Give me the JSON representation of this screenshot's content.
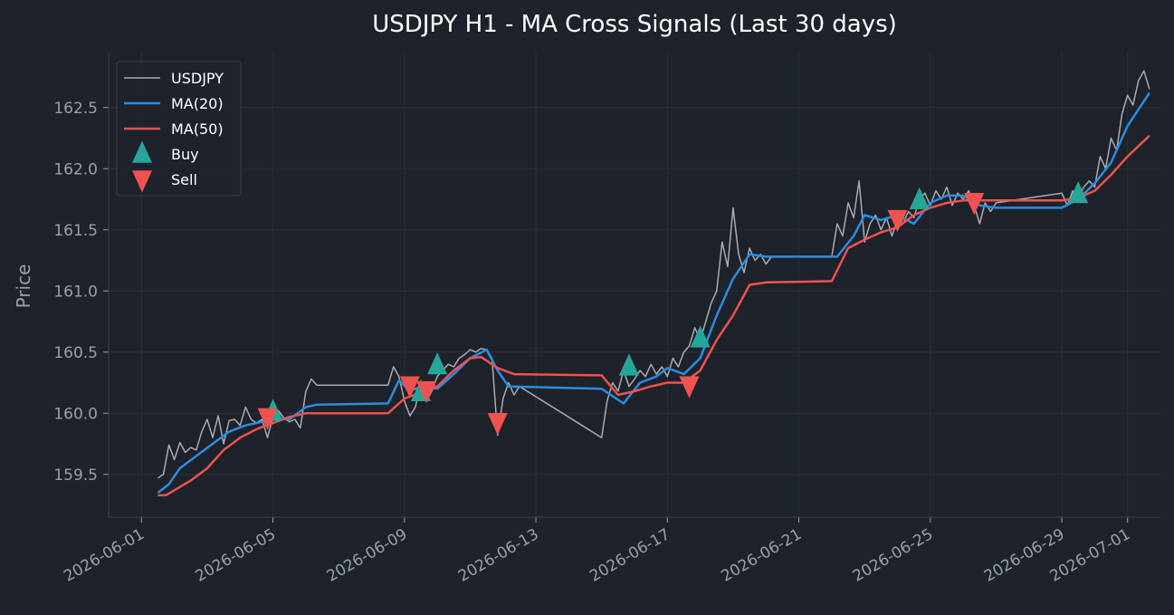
{
  "chart_data": {
    "type": "line",
    "title": "USDJPY H1 - MA Cross Signals (Last 30 days)",
    "xlabel": "",
    "ylabel": "Price",
    "xlim": [
      "2026-05-31T00:00",
      "2026-07-02T00:00"
    ],
    "ylim": [
      159.15,
      162.95
    ],
    "x_ticks": [
      "2026-06-01",
      "2026-06-05",
      "2026-06-09",
      "2026-06-13",
      "2026-06-17",
      "2026-06-21",
      "2026-06-25",
      "2026-06-29",
      "2026-07-01"
    ],
    "y_ticks": [
      159.5,
      160.0,
      160.5,
      161.0,
      161.5,
      162.0,
      162.5
    ],
    "grid": true,
    "legend_position": "top-left",
    "colors": {
      "background": "#1e222b",
      "grid": "#2a2f3a",
      "axis_text": "#9aa0ab",
      "title": "#ffffff",
      "price": "#a8adb5",
      "ma20": "#2b8de0",
      "ma50": "#ee5250",
      "buy": "#26a69a",
      "sell": "#ef5350"
    },
    "series": [
      {
        "name": "USDJPY",
        "kind": "line",
        "points": [
          [
            "2026-06-01T12:00",
            159.47
          ],
          [
            "2026-06-01T16:00",
            159.5
          ],
          [
            "2026-06-01T20:00",
            159.74
          ],
          [
            "2026-06-02T00:00",
            159.62
          ],
          [
            "2026-06-02T04:00",
            159.76
          ],
          [
            "2026-06-02T08:00",
            159.68
          ],
          [
            "2026-06-02T12:00",
            159.72
          ],
          [
            "2026-06-02T16:00",
            159.7
          ],
          [
            "2026-06-02T20:00",
            159.85
          ],
          [
            "2026-06-03T00:00",
            159.95
          ],
          [
            "2026-06-03T04:00",
            159.8
          ],
          [
            "2026-06-03T08:00",
            159.98
          ],
          [
            "2026-06-03T12:00",
            159.75
          ],
          [
            "2026-06-03T16:00",
            159.94
          ],
          [
            "2026-06-03T20:00",
            159.95
          ],
          [
            "2026-06-04T00:00",
            159.9
          ],
          [
            "2026-06-04T04:00",
            160.05
          ],
          [
            "2026-06-04T08:00",
            159.95
          ],
          [
            "2026-06-04T12:00",
            159.92
          ],
          [
            "2026-06-04T16:00",
            159.95
          ],
          [
            "2026-06-04T20:00",
            159.8
          ],
          [
            "2026-06-05T00:00",
            159.97
          ],
          [
            "2026-06-05T04:00",
            160.02
          ],
          [
            "2026-06-05T08:00",
            159.96
          ],
          [
            "2026-06-05T12:00",
            159.93
          ],
          [
            "2026-06-05T16:00",
            159.95
          ],
          [
            "2026-06-05T20:00",
            159.88
          ],
          [
            "2026-06-06T00:00",
            160.18
          ],
          [
            "2026-06-06T04:00",
            160.28
          ],
          [
            "2026-06-06T08:00",
            160.23
          ],
          [
            "2026-06-08T12:00",
            160.23
          ],
          [
            "2026-06-08T16:00",
            160.38
          ],
          [
            "2026-06-08T20:00",
            160.3
          ],
          [
            "2026-06-09T00:00",
            160.1
          ],
          [
            "2026-06-09T04:00",
            159.98
          ],
          [
            "2026-06-09T08:00",
            160.05
          ],
          [
            "2026-06-09T12:00",
            160.25
          ],
          [
            "2026-06-09T16:00",
            160.1
          ],
          [
            "2026-06-09T20:00",
            160.18
          ],
          [
            "2026-06-10T00:00",
            160.3
          ],
          [
            "2026-06-10T04:00",
            160.35
          ],
          [
            "2026-06-10T08:00",
            160.4
          ],
          [
            "2026-06-10T12:00",
            160.38
          ],
          [
            "2026-06-10T16:00",
            160.45
          ],
          [
            "2026-06-10T20:00",
            160.48
          ],
          [
            "2026-06-11T00:00",
            160.52
          ],
          [
            "2026-06-11T04:00",
            160.5
          ],
          [
            "2026-06-11T08:00",
            160.53
          ],
          [
            "2026-06-11T12:00",
            160.52
          ],
          [
            "2026-06-11T16:00",
            160.45
          ],
          [
            "2026-06-11T20:00",
            159.82
          ],
          [
            "2026-06-12T00:00",
            160.12
          ],
          [
            "2026-06-12T04:00",
            160.25
          ],
          [
            "2026-06-12T08:00",
            160.15
          ],
          [
            "2026-06-12T12:00",
            160.22
          ],
          [
            "2026-06-15T00:00",
            159.8
          ],
          [
            "2026-06-15T04:00",
            160.1
          ],
          [
            "2026-06-15T08:00",
            160.25
          ],
          [
            "2026-06-15T12:00",
            160.18
          ],
          [
            "2026-06-15T16:00",
            160.35
          ],
          [
            "2026-06-15T20:00",
            160.22
          ],
          [
            "2026-06-16T00:00",
            160.28
          ],
          [
            "2026-06-16T04:00",
            160.35
          ],
          [
            "2026-06-16T08:00",
            160.3
          ],
          [
            "2026-06-16T12:00",
            160.4
          ],
          [
            "2026-06-16T16:00",
            160.32
          ],
          [
            "2026-06-16T20:00",
            160.38
          ],
          [
            "2026-06-17T00:00",
            160.3
          ],
          [
            "2026-06-17T04:00",
            160.45
          ],
          [
            "2026-06-17T08:00",
            160.38
          ],
          [
            "2026-06-17T12:00",
            160.5
          ],
          [
            "2026-06-17T16:00",
            160.55
          ],
          [
            "2026-06-17T20:00",
            160.7
          ],
          [
            "2026-06-18T00:00",
            160.6
          ],
          [
            "2026-06-18T04:00",
            160.75
          ],
          [
            "2026-06-18T08:00",
            160.9
          ],
          [
            "2026-06-18T12:00",
            161.0
          ],
          [
            "2026-06-18T16:00",
            161.4
          ],
          [
            "2026-06-18T20:00",
            161.2
          ],
          [
            "2026-06-19T00:00",
            161.68
          ],
          [
            "2026-06-19T04:00",
            161.3
          ],
          [
            "2026-06-19T08:00",
            161.15
          ],
          [
            "2026-06-19T12:00",
            161.35
          ],
          [
            "2026-06-19T16:00",
            161.25
          ],
          [
            "2026-06-19T20:00",
            161.3
          ],
          [
            "2026-06-20T00:00",
            161.22
          ],
          [
            "2026-06-20T04:00",
            161.28
          ],
          [
            "2026-06-22T00:00",
            161.28
          ],
          [
            "2026-06-22T04:00",
            161.55
          ],
          [
            "2026-06-22T08:00",
            161.45
          ],
          [
            "2026-06-22T12:00",
            161.72
          ],
          [
            "2026-06-22T16:00",
            161.6
          ],
          [
            "2026-06-22T20:00",
            161.9
          ],
          [
            "2026-06-23T00:00",
            161.4
          ],
          [
            "2026-06-23T04:00",
            161.55
          ],
          [
            "2026-06-23T08:00",
            161.62
          ],
          [
            "2026-06-23T12:00",
            161.5
          ],
          [
            "2026-06-23T16:00",
            161.6
          ],
          [
            "2026-06-23T20:00",
            161.45
          ],
          [
            "2026-06-24T00:00",
            161.58
          ],
          [
            "2026-06-24T04:00",
            161.55
          ],
          [
            "2026-06-24T08:00",
            161.65
          ],
          [
            "2026-06-24T12:00",
            161.6
          ],
          [
            "2026-06-24T16:00",
            161.75
          ],
          [
            "2026-06-24T20:00",
            161.8
          ],
          [
            "2026-06-25T00:00",
            161.7
          ],
          [
            "2026-06-25T04:00",
            161.82
          ],
          [
            "2026-06-25T08:00",
            161.75
          ],
          [
            "2026-06-25T12:00",
            161.85
          ],
          [
            "2026-06-25T16:00",
            161.7
          ],
          [
            "2026-06-25T20:00",
            161.8
          ],
          [
            "2026-06-26T00:00",
            161.75
          ],
          [
            "2026-06-26T04:00",
            161.82
          ],
          [
            "2026-06-26T08:00",
            161.7
          ],
          [
            "2026-06-26T12:00",
            161.55
          ],
          [
            "2026-06-26T16:00",
            161.72
          ],
          [
            "2026-06-26T20:00",
            161.65
          ],
          [
            "2026-06-27T00:00",
            161.72
          ],
          [
            "2026-06-29T00:00",
            161.8
          ],
          [
            "2026-06-29T04:00",
            161.7
          ],
          [
            "2026-06-29T08:00",
            161.82
          ],
          [
            "2026-06-29T12:00",
            161.75
          ],
          [
            "2026-06-29T16:00",
            161.85
          ],
          [
            "2026-06-29T20:00",
            161.9
          ],
          [
            "2026-06-30T00:00",
            161.85
          ],
          [
            "2026-06-30T04:00",
            162.1
          ],
          [
            "2026-06-30T08:00",
            162.0
          ],
          [
            "2026-06-30T12:00",
            162.25
          ],
          [
            "2026-06-30T16:00",
            162.15
          ],
          [
            "2026-06-30T20:00",
            162.45
          ],
          [
            "2026-07-01T00:00",
            162.6
          ],
          [
            "2026-07-01T04:00",
            162.52
          ],
          [
            "2026-07-01T08:00",
            162.72
          ],
          [
            "2026-07-01T12:00",
            162.8
          ],
          [
            "2026-07-01T16:00",
            162.65
          ]
        ]
      },
      {
        "name": "MA(20)",
        "kind": "line",
        "points": [
          [
            "2026-06-01T12:00",
            159.35
          ],
          [
            "2026-06-01T20:00",
            159.42
          ],
          [
            "2026-06-02T04:00",
            159.55
          ],
          [
            "2026-06-02T16:00",
            159.65
          ],
          [
            "2026-06-03T04:00",
            159.75
          ],
          [
            "2026-06-03T16:00",
            159.85
          ],
          [
            "2026-06-04T04:00",
            159.9
          ],
          [
            "2026-06-04T16:00",
            159.93
          ],
          [
            "2026-06-05T00:00",
            159.96
          ],
          [
            "2026-06-05T12:00",
            159.95
          ],
          [
            "2026-06-06T00:00",
            160.05
          ],
          [
            "2026-06-06T08:00",
            160.07
          ],
          [
            "2026-06-08T12:00",
            160.08
          ],
          [
            "2026-06-08T20:00",
            160.27
          ],
          [
            "2026-06-09T04:00",
            160.18
          ],
          [
            "2026-06-09T12:00",
            160.22
          ],
          [
            "2026-06-10T00:00",
            160.2
          ],
          [
            "2026-06-10T12:00",
            160.32
          ],
          [
            "2026-06-11T00:00",
            160.45
          ],
          [
            "2026-06-11T12:00",
            160.52
          ],
          [
            "2026-06-11T20:00",
            160.35
          ],
          [
            "2026-06-12T04:00",
            160.22
          ],
          [
            "2026-06-15T00:00",
            160.2
          ],
          [
            "2026-06-15T16:00",
            160.08
          ],
          [
            "2026-06-16T04:00",
            160.25
          ],
          [
            "2026-06-16T16:00",
            160.3
          ],
          [
            "2026-06-17T00:00",
            160.37
          ],
          [
            "2026-06-17T12:00",
            160.32
          ],
          [
            "2026-06-18T00:00",
            160.45
          ],
          [
            "2026-06-18T12:00",
            160.8
          ],
          [
            "2026-06-19T00:00",
            161.1
          ],
          [
            "2026-06-19T12:00",
            161.3
          ],
          [
            "2026-06-20T00:00",
            161.28
          ],
          [
            "2026-06-22T04:00",
            161.28
          ],
          [
            "2026-06-22T16:00",
            161.45
          ],
          [
            "2026-06-23T00:00",
            161.62
          ],
          [
            "2026-06-23T12:00",
            161.58
          ],
          [
            "2026-06-24T00:00",
            161.62
          ],
          [
            "2026-06-24T12:00",
            161.55
          ],
          [
            "2026-06-25T00:00",
            161.72
          ],
          [
            "2026-06-25T12:00",
            161.78
          ],
          [
            "2026-06-26T00:00",
            161.78
          ],
          [
            "2026-06-26T12:00",
            161.7
          ],
          [
            "2026-06-27T00:00",
            161.68
          ],
          [
            "2026-06-29T00:00",
            161.68
          ],
          [
            "2026-06-29T12:00",
            161.75
          ],
          [
            "2026-06-30T00:00",
            161.88
          ],
          [
            "2026-06-30T12:00",
            162.05
          ],
          [
            "2026-07-01T00:00",
            162.35
          ],
          [
            "2026-07-01T16:00",
            162.62
          ]
        ]
      },
      {
        "name": "MA(50)",
        "kind": "line",
        "points": [
          [
            "2026-06-01T12:00",
            159.33
          ],
          [
            "2026-06-01T18:00",
            159.33
          ],
          [
            "2026-06-02T12:00",
            159.45
          ],
          [
            "2026-06-03T00:00",
            159.55
          ],
          [
            "2026-06-03T12:00",
            159.7
          ],
          [
            "2026-06-04T00:00",
            159.8
          ],
          [
            "2026-06-04T12:00",
            159.87
          ],
          [
            "2026-06-05T00:00",
            159.92
          ],
          [
            "2026-06-05T12:00",
            159.97
          ],
          [
            "2026-06-06T00:00",
            160.0
          ],
          [
            "2026-06-08T12:00",
            160.0
          ],
          [
            "2026-06-09T00:00",
            160.12
          ],
          [
            "2026-06-09T12:00",
            160.17
          ],
          [
            "2026-06-10T00:00",
            160.22
          ],
          [
            "2026-06-10T12:00",
            160.35
          ],
          [
            "2026-06-11T00:00",
            160.45
          ],
          [
            "2026-06-11T08:00",
            160.46
          ],
          [
            "2026-06-11T20:00",
            160.37
          ],
          [
            "2026-06-12T08:00",
            160.32
          ],
          [
            "2026-06-15T00:00",
            160.31
          ],
          [
            "2026-06-15T12:00",
            160.15
          ],
          [
            "2026-06-16T00:00",
            160.18
          ],
          [
            "2026-06-16T12:00",
            160.22
          ],
          [
            "2026-06-17T00:00",
            160.25
          ],
          [
            "2026-06-17T12:00",
            160.25
          ],
          [
            "2026-06-18T00:00",
            160.35
          ],
          [
            "2026-06-18T12:00",
            160.6
          ],
          [
            "2026-06-19T00:00",
            160.8
          ],
          [
            "2026-06-19T12:00",
            161.05
          ],
          [
            "2026-06-20T00:00",
            161.07
          ],
          [
            "2026-06-22T00:00",
            161.08
          ],
          [
            "2026-06-22T12:00",
            161.35
          ],
          [
            "2026-06-23T00:00",
            161.42
          ],
          [
            "2026-06-23T12:00",
            161.48
          ],
          [
            "2026-06-24T00:00",
            161.52
          ],
          [
            "2026-06-24T12:00",
            161.62
          ],
          [
            "2026-06-25T00:00",
            161.68
          ],
          [
            "2026-06-25T12:00",
            161.72
          ],
          [
            "2026-06-26T00:00",
            161.74
          ],
          [
            "2026-06-27T00:00",
            161.74
          ],
          [
            "2026-06-29T00:00",
            161.74
          ],
          [
            "2026-06-29T12:00",
            161.76
          ],
          [
            "2026-06-30T00:00",
            161.82
          ],
          [
            "2026-06-30T12:00",
            161.95
          ],
          [
            "2026-07-01T00:00",
            162.1
          ],
          [
            "2026-07-01T16:00",
            162.27
          ]
        ]
      },
      {
        "name": "Buy",
        "kind": "marker",
        "points": [
          [
            "2026-06-05T00:00",
            160.01
          ],
          [
            "2026-06-09T12:00",
            160.17
          ],
          [
            "2026-06-10T00:00",
            160.39
          ],
          [
            "2026-06-15T20:00",
            160.38
          ],
          [
            "2026-06-18T00:00",
            160.61
          ],
          [
            "2026-06-24T16:00",
            161.74
          ],
          [
            "2026-06-29T12:00",
            161.79
          ]
        ]
      },
      {
        "name": "Sell",
        "kind": "marker",
        "points": [
          [
            "2026-06-04T20:00",
            159.97
          ],
          [
            "2026-06-09T04:00",
            160.23
          ],
          [
            "2026-06-09T16:00",
            160.19
          ],
          [
            "2026-06-11T20:00",
            159.93
          ],
          [
            "2026-06-17T16:00",
            160.23
          ],
          [
            "2026-06-24T00:00",
            161.59
          ],
          [
            "2026-06-26T08:00",
            161.73
          ]
        ]
      }
    ]
  }
}
